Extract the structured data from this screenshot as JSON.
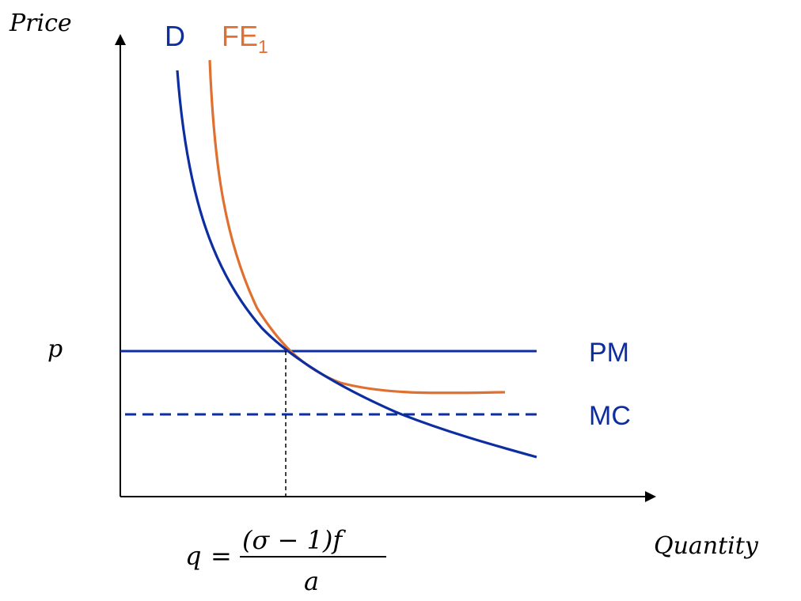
{
  "axes": {
    "y_label": "Price",
    "x_label": "Quantity"
  },
  "curves": {
    "demand": {
      "label": "D",
      "color": "#0d2ea0"
    },
    "free_entry": {
      "label": "FE",
      "subscript": "1",
      "color": "#e07030"
    }
  },
  "lines": {
    "pm": {
      "label": "PM",
      "color": "#0d2ea0"
    },
    "mc": {
      "label": "MC",
      "color": "#0d2ea0",
      "style": "dashed"
    }
  },
  "price_marker": "p",
  "quantity_formula": {
    "lhs": "q",
    "equals": "=",
    "numerator": "(σ − 1)f",
    "denominator": "a"
  },
  "colors": {
    "axis": "#000000",
    "blue": "#0d2ea0",
    "orange": "#e07030"
  }
}
